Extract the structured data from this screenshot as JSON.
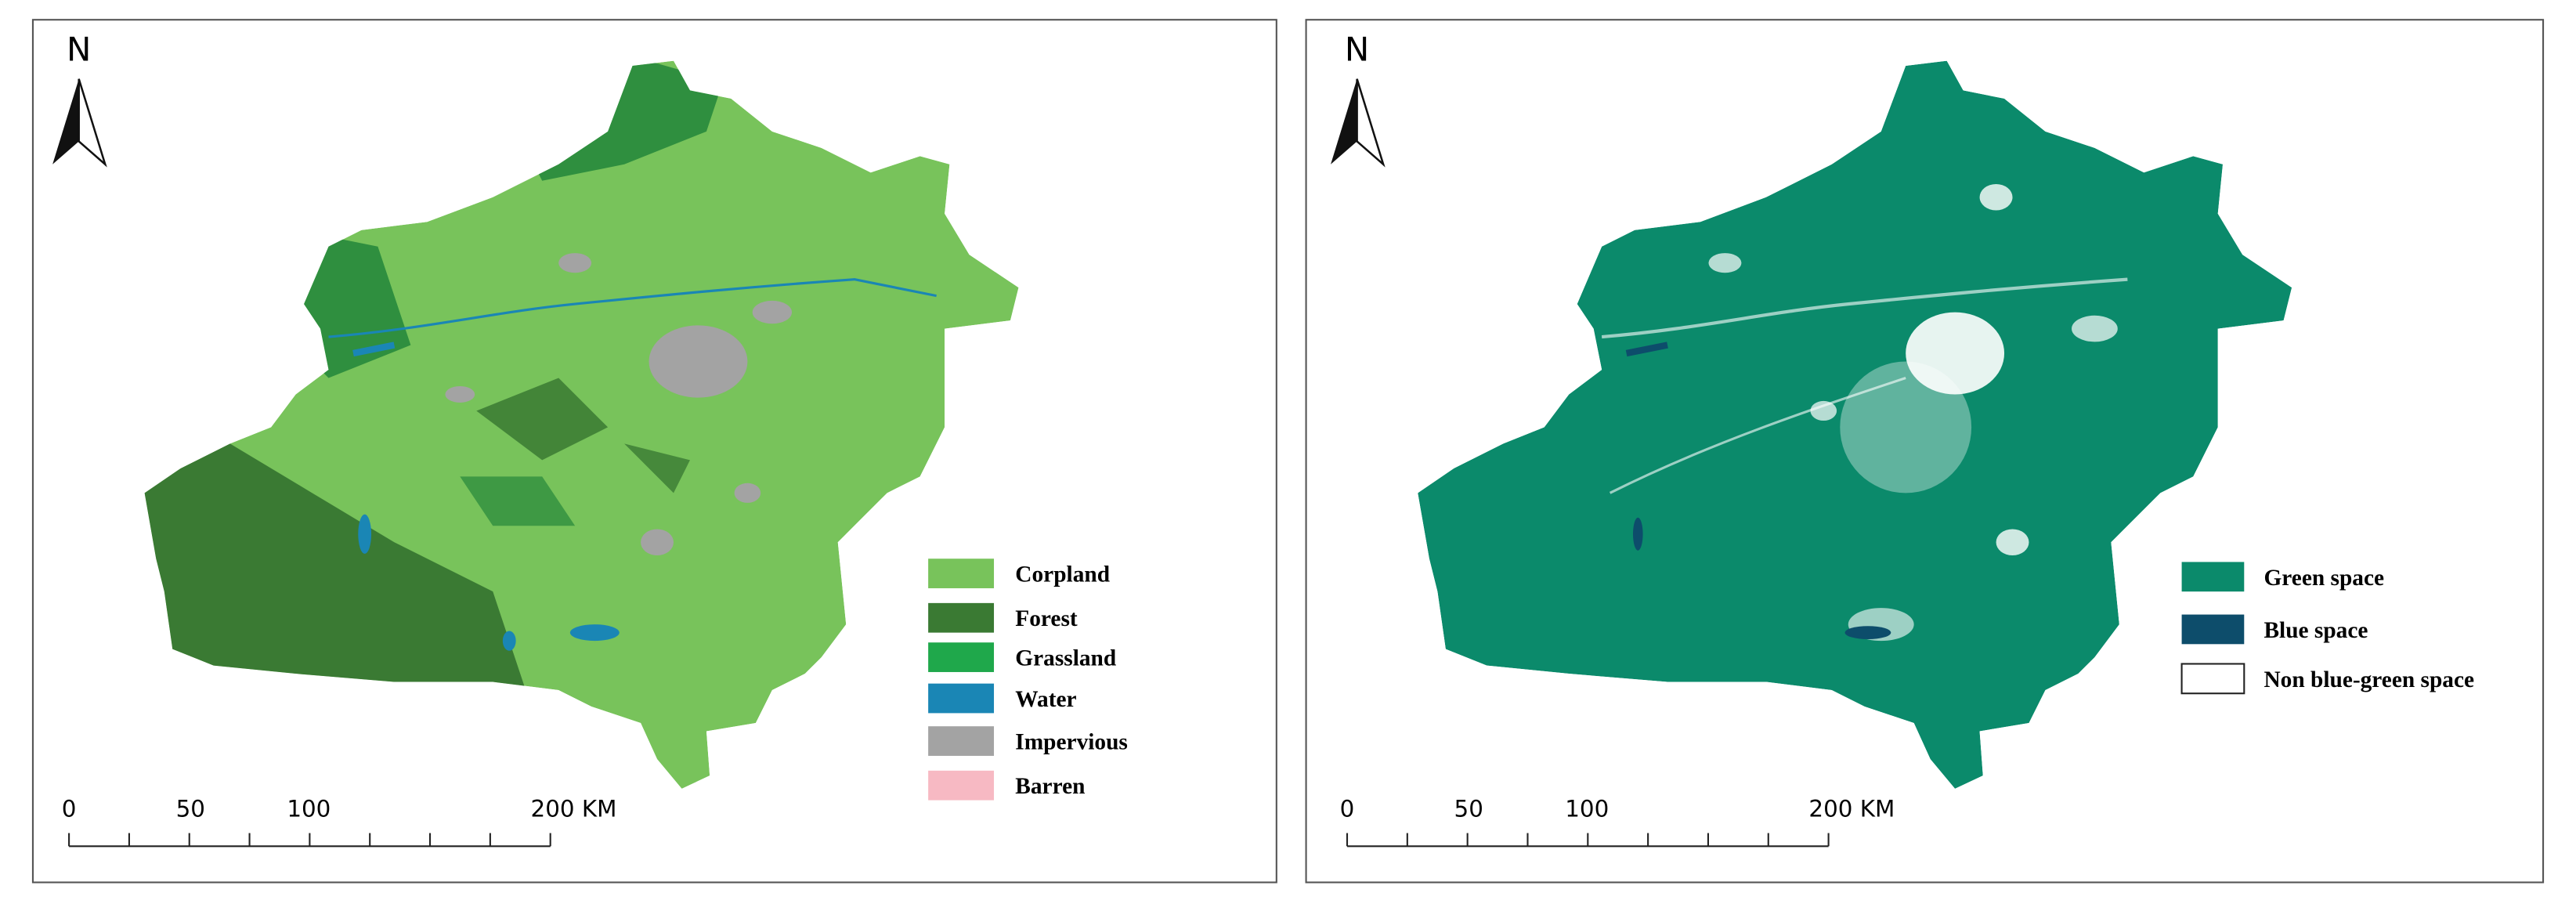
{
  "panels": [
    {
      "north": "N",
      "scale_bar": [
        "0",
        "50",
        "100",
        "200 KM"
      ],
      "legend": [
        {
          "label": "Corpland",
          "color": "#78c35b"
        },
        {
          "label": "Forest",
          "color": "#3a7a33"
        },
        {
          "label": "Grassland",
          "color": "#1fa84b"
        },
        {
          "label": "Water",
          "color": "#1a86b5"
        },
        {
          "label": "Impervious",
          "color": "#a3a3a3"
        },
        {
          "label": "Barren",
          "color": "#f7b9c3"
        }
      ]
    },
    {
      "north": "N",
      "scale_bar": [
        "0",
        "50",
        "100",
        "200 KM"
      ],
      "legend": [
        {
          "label": "Green space",
          "color": "#0b8a6b"
        },
        {
          "label": "Blue space",
          "color": "#0d4d6b"
        },
        {
          "label": "Non blue-green space",
          "color": "#ffffff"
        }
      ]
    }
  ]
}
